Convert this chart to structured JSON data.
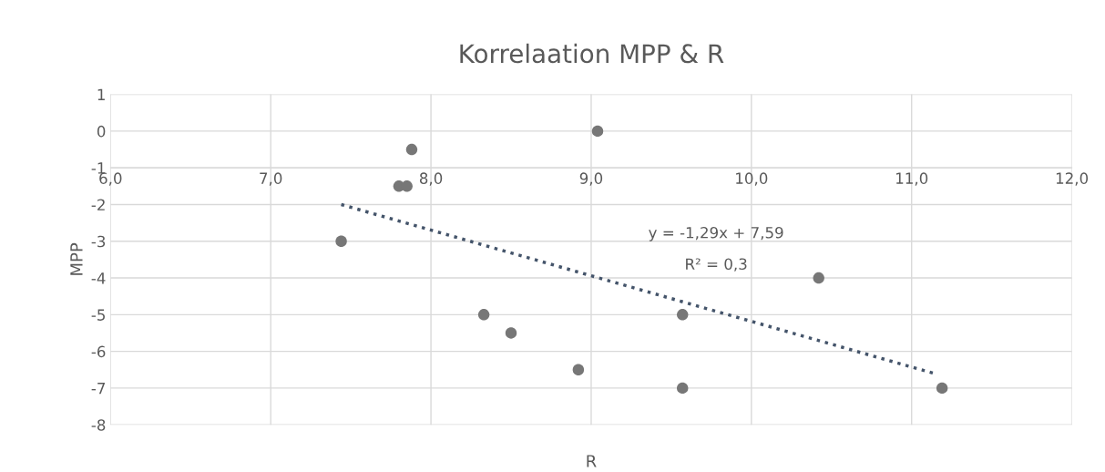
{
  "chart_data": {
    "type": "scatter",
    "title": "Korrelaation MPP & R",
    "xlabel": "R",
    "ylabel": "MPP",
    "xlim": [
      6.0,
      12.0
    ],
    "xticks": [
      {
        "value": 6,
        "label": "6,0"
      },
      {
        "value": 7,
        "label": "7,0"
      },
      {
        "value": 8,
        "label": "8,0"
      },
      {
        "value": 9,
        "label": "9,0"
      },
      {
        "value": 10,
        "label": "10,0"
      },
      {
        "value": 11,
        "label": "11,0"
      },
      {
        "value": 12,
        "label": "12,0"
      }
    ],
    "ylim": [
      -8,
      1
    ],
    "yticks": [
      -8,
      -7,
      -6,
      -5,
      -4,
      -3,
      -2,
      -1,
      0,
      1
    ],
    "grid": true,
    "marker": "circle",
    "series": [
      {
        "color": "#777777",
        "x": [
          7.44,
          7.8,
          7.85,
          7.88,
          8.33,
          8.5,
          8.92,
          9.04,
          9.57,
          9.57,
          10.42,
          11.19
        ],
        "values": [
          -3,
          -1.5,
          -1.5,
          -0.5,
          -5,
          -5.5,
          -6.5,
          0,
          -5,
          -7,
          -4,
          -7
        ]
      },
      {
        "type": "line",
        "color": "#44546a",
        "line_style": "dotted",
        "marker": "none",
        "x": [
          7.44,
          11.14
        ],
        "values": [
          -2.0,
          -6.6
        ]
      }
    ],
    "annotations": [
      "y = -1,29x + 7,59",
      "R² = 0,3"
    ]
  }
}
